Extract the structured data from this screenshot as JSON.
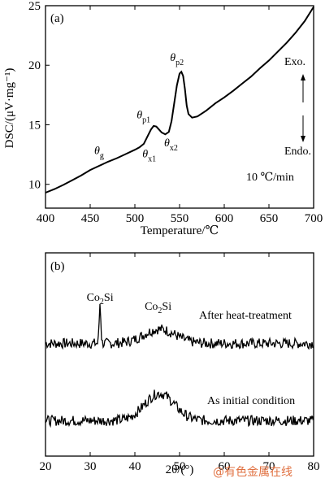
{
  "chart_data": [
    {
      "type": "line",
      "panel_label": "(a)",
      "xlabel": "Temperature/℃",
      "ylabel": "DSC/(μV·mg⁻¹)",
      "xlim": [
        400,
        700
      ],
      "ylim": [
        8,
        25
      ],
      "xticks": [
        "400",
        "450",
        "500",
        "550",
        "600",
        "650",
        "700"
      ],
      "yticks": [
        "10",
        "15",
        "20",
        "25"
      ],
      "rate_label": "10 ℃/min",
      "side_labels": {
        "exo": "Exo.",
        "endo": "Endo."
      },
      "annotations": [
        {
          "sym": "θ",
          "sub": "g",
          "x": 480,
          "y": 12.4
        },
        {
          "sym": "θ",
          "sub": "x1",
          "x": 512,
          "y": 13.5
        },
        {
          "sym": "θ",
          "sub": "p1",
          "x": 522,
          "y": 15.0
        },
        {
          "sym": "θ",
          "sub": "x2",
          "x": 540,
          "y": 14.7
        },
        {
          "sym": "θ",
          "sub": "p2",
          "x": 552,
          "y": 19.4
        }
      ],
      "series": [
        {
          "x": [
            400,
            410,
            420,
            430,
            440,
            450,
            460,
            470,
            480,
            490,
            500,
            505,
            510,
            514,
            518,
            521,
            524,
            527,
            530,
            534,
            538,
            541,
            544,
            547,
            550,
            552,
            554,
            556,
            558,
            560,
            564,
            570,
            580,
            590,
            600,
            610,
            620,
            630,
            640,
            650,
            660,
            670,
            680,
            690,
            700
          ],
          "y": [
            9.3,
            9.6,
            9.95,
            10.35,
            10.75,
            11.2,
            11.55,
            11.9,
            12.2,
            12.55,
            12.9,
            13.1,
            13.4,
            14.0,
            14.6,
            14.9,
            14.85,
            14.6,
            14.35,
            14.2,
            14.4,
            15.3,
            16.8,
            18.3,
            19.3,
            19.45,
            19.1,
            18.0,
            16.6,
            15.9,
            15.6,
            15.7,
            16.2,
            16.8,
            17.3,
            17.85,
            18.45,
            19.05,
            19.75,
            20.4,
            21.15,
            21.9,
            22.75,
            23.7,
            24.9
          ]
        }
      ]
    },
    {
      "type": "line",
      "panel_label": "(b)",
      "xlabel": "2θ/(°)",
      "xlim": [
        20,
        80
      ],
      "xticks": [
        "20",
        "30",
        "40",
        "50",
        "60",
        "70",
        "80"
      ],
      "peak_labels": [
        {
          "text": "Co",
          "sub": "2",
          "suffix": "Si",
          "x": 32.2
        },
        {
          "text": "Co",
          "sub": "2",
          "suffix": "Si",
          "x": 45.2
        }
      ],
      "series": [
        {
          "name": "After heat-treatment",
          "baseline": 0.12,
          "broad_peak": {
            "center": 45.5,
            "height": 0.22,
            "width": 3.5
          },
          "sharp_peak": {
            "center": 32.2,
            "height": 0.62
          }
        },
        {
          "name": "As initial condition",
          "baseline": 0.12,
          "broad_peak": {
            "center": 45.5,
            "height": 0.42,
            "width": 3.3
          }
        }
      ]
    }
  ],
  "watermark": "@有色金属在线"
}
